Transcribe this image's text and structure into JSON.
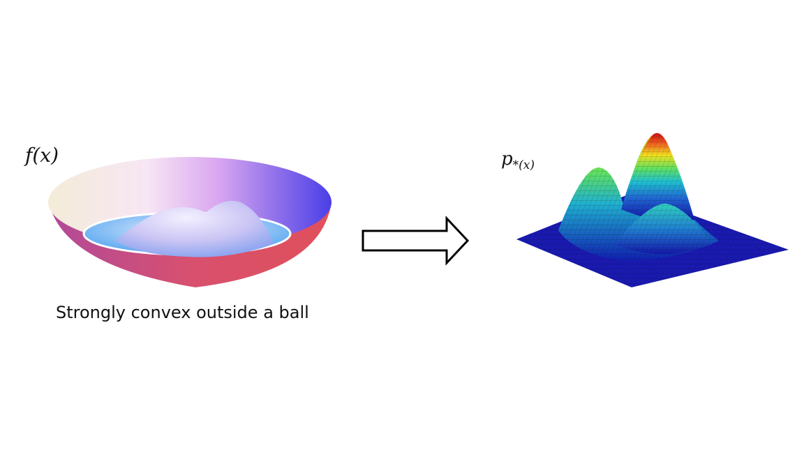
{
  "left": {
    "label": "f(x)",
    "caption": "Strongly convex outside a ball"
  },
  "right": {
    "label": "p",
    "label_subscript": "*(x)"
  }
}
